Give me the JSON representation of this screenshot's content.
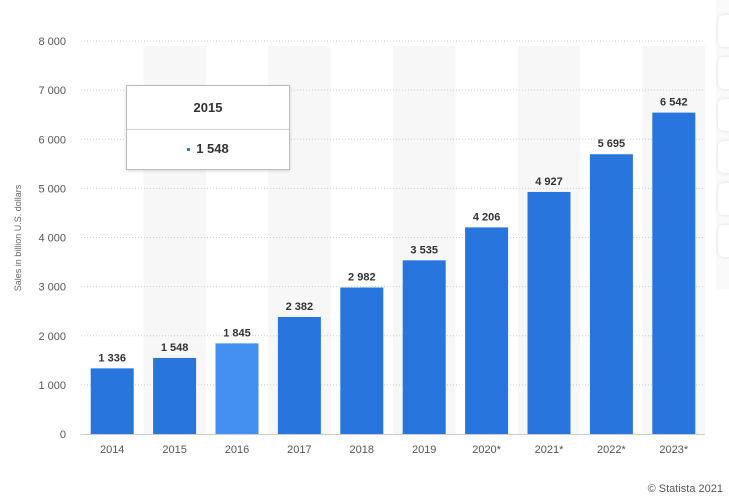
{
  "chart_data": {
    "type": "bar",
    "categories": [
      "2014",
      "2015",
      "2016",
      "2017",
      "2018",
      "2019",
      "2020*",
      "2021*",
      "2022*",
      "2023*"
    ],
    "values": [
      1336,
      1548,
      1845,
      2382,
      2982,
      3535,
      4206,
      4927,
      5695,
      6542
    ],
    "data_labels": [
      "1 336",
      "1 548",
      "1 845",
      "2 382",
      "2 982",
      "3 535",
      "4 206",
      "4 927",
      "5 695",
      "6 542"
    ],
    "ylabel": "Sales in billion U.S. dollars",
    "ylim": [
      0,
      8000
    ],
    "yticks": [
      0,
      1000,
      2000,
      3000,
      4000,
      5000,
      6000,
      7000,
      8000
    ],
    "ytick_labels": [
      "0",
      "1 000",
      "2 000",
      "3 000",
      "4 000",
      "5 000",
      "6 000",
      "7 000",
      "8 000"
    ],
    "grid": true,
    "bar_color": "#2876dd",
    "highlight_color": "#4390f0",
    "highlighted_category": "2016"
  },
  "tooltip": {
    "title": "2015",
    "value": "1 548"
  },
  "credit": "© Statista 2021"
}
